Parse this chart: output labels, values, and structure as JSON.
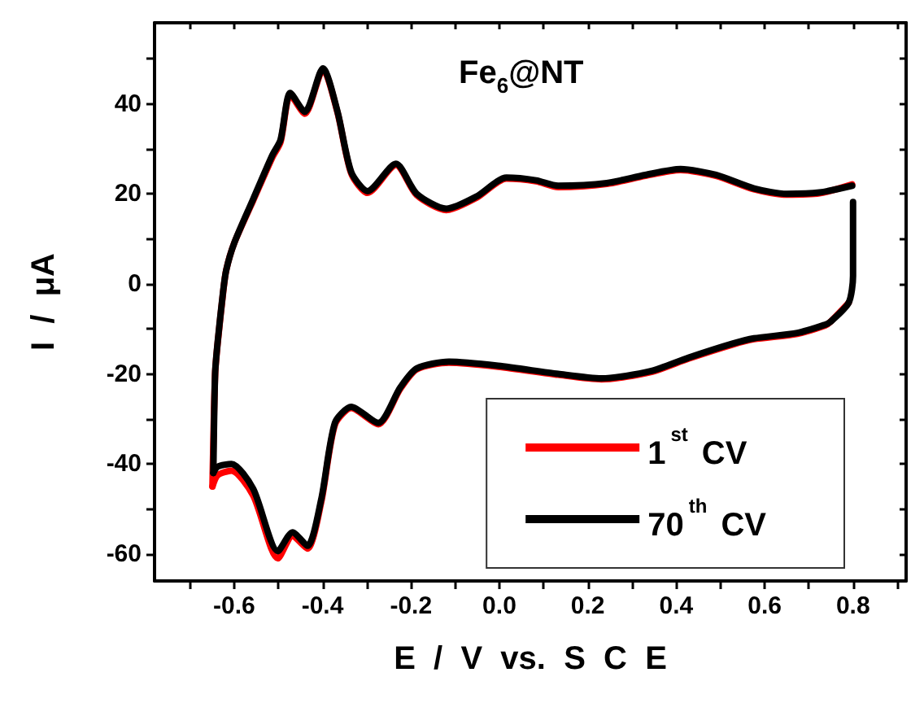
{
  "chart_data": {
    "type": "line",
    "title": "Fe$_{6}$@NT",
    "xlabel": "E  /  V  vs.  S  C  E",
    "ylabel": "I  /  μA",
    "xlim": [
      -0.78,
      0.92
    ],
    "ylim": [
      -66,
      58
    ],
    "xticks": [
      {
        "value": -0.7,
        "label": null
      },
      -0.6,
      {
        "value": -0.5,
        "label": null
      },
      -0.4,
      {
        "value": -0.3,
        "label": null
      },
      -0.2,
      {
        "value": -0.1,
        "label": null
      },
      {
        "value": 0,
        "label": "0.0"
      },
      {
        "value": 0.1,
        "label": null
      },
      0.2,
      {
        "value": 0.3,
        "label": null
      },
      0.4,
      {
        "value": 0.5,
        "label": null
      },
      0.6,
      {
        "value": 0.7,
        "label": null
      },
      0.8,
      {
        "value": 0.9,
        "label": null
      }
    ],
    "yticks": [
      -60,
      {
        "value": -50,
        "label": null
      },
      -40,
      {
        "value": -30,
        "label": null
      },
      -20,
      {
        "value": -10,
        "label": null
      },
      0,
      {
        "value": 10,
        "label": null
      },
      20,
      {
        "value": 30,
        "label": null
      },
      40,
      {
        "value": 50,
        "label": null
      }
    ],
    "legend": "bottom right",
    "grid": false,
    "marker": "none",
    "line_style": "solid",
    "series": [
      {
        "name": "1$^{st}$ CV",
        "color": "#ff0000",
        "x": [
          -0.649,
          -0.643,
          -0.637,
          -0.625,
          -0.618,
          -0.6,
          -0.557,
          -0.514,
          -0.495,
          -0.473,
          -0.44,
          -0.399,
          -0.366,
          -0.335,
          -0.298,
          -0.234,
          -0.187,
          -0.12,
          -0.052,
          0.016,
          0.083,
          0.133,
          0.243,
          0.33,
          0.41,
          0.49,
          0.576,
          0.65,
          0.724,
          0.798
        ],
        "values": [
          -45,
          -20,
          -13,
          -2,
          3,
          9,
          18.5,
          28,
          31.5,
          42,
          37.8,
          47.6,
          38,
          24.5,
          20.2,
          26.4,
          19.7,
          16.4,
          19.1,
          23.4,
          22.8,
          21.5,
          22.2,
          24,
          25.3,
          24,
          21,
          19.8,
          20.1,
          22.1
        ]
      },
      {
        "color": "#ff0000",
        "x": [
          -0.649,
          -0.637,
          -0.606,
          -0.557,
          -0.501,
          -0.468,
          -0.434,
          -0.403,
          -0.372,
          -0.335,
          -0.274,
          -0.224,
          -0.187,
          -0.114,
          -0.003,
          0.133,
          0.231,
          0.342,
          0.428,
          0.527,
          0.576,
          0.674,
          0.736,
          0.748,
          0.79
        ],
        "values": [
          -45,
          -42.5,
          -41.5,
          -47,
          -61,
          -56,
          -58.8,
          -48.5,
          -31.3,
          -27.6,
          -31.2,
          -23.3,
          -19,
          -17.5,
          -18.4,
          -20.2,
          -21.2,
          -19.6,
          -16.6,
          -13.5,
          -12.3,
          -11.1,
          -9.3,
          -8.5,
          -4.2
        ]
      },
      {
        "name": "70$^{th}$ CV",
        "color": "#000000",
        "x": [
          -0.647,
          -0.643,
          -0.637,
          -0.625,
          -0.618,
          -0.6,
          -0.557,
          -0.514,
          -0.495,
          -0.473,
          -0.44,
          -0.399,
          -0.366,
          -0.335,
          -0.298,
          -0.234,
          -0.187,
          -0.12,
          -0.052,
          0.016,
          0.083,
          0.133,
          0.243,
          0.33,
          0.41,
          0.49,
          0.576,
          0.65,
          0.724,
          0.798
        ],
        "values": [
          -42,
          -20,
          -12.7,
          -1.8,
          3,
          9,
          18.8,
          28.5,
          32,
          42.4,
          38.2,
          47.9,
          38.2,
          24.8,
          20.6,
          26.7,
          20,
          16.7,
          19.4,
          23.6,
          23,
          21.8,
          22.4,
          24.2,
          25.5,
          24.2,
          21.2,
          20,
          20.3,
          21.8
        ]
      },
      {
        "color": "#000000",
        "x": [
          -0.647,
          -0.637,
          -0.606,
          -0.557,
          -0.501,
          -0.468,
          -0.434,
          -0.403,
          -0.372,
          -0.335,
          -0.274,
          -0.224,
          -0.187,
          -0.114,
          -0.003,
          0.133,
          0.231,
          0.342,
          0.428,
          0.527,
          0.576,
          0.674,
          0.736,
          0.748,
          0.79,
          0.8,
          0.8
        ],
        "values": [
          -42,
          -40.6,
          -40,
          -45.5,
          -59.4,
          -55.2,
          -58.2,
          -47.9,
          -30.9,
          -27.3,
          -30.9,
          -23,
          -18.8,
          -17.3,
          -18.2,
          -20,
          -21,
          -19.4,
          -16.4,
          -13.3,
          -12.1,
          -10.9,
          -9.1,
          -8.5,
          -4.2,
          1.8,
          18.2
        ]
      }
    ]
  }
}
